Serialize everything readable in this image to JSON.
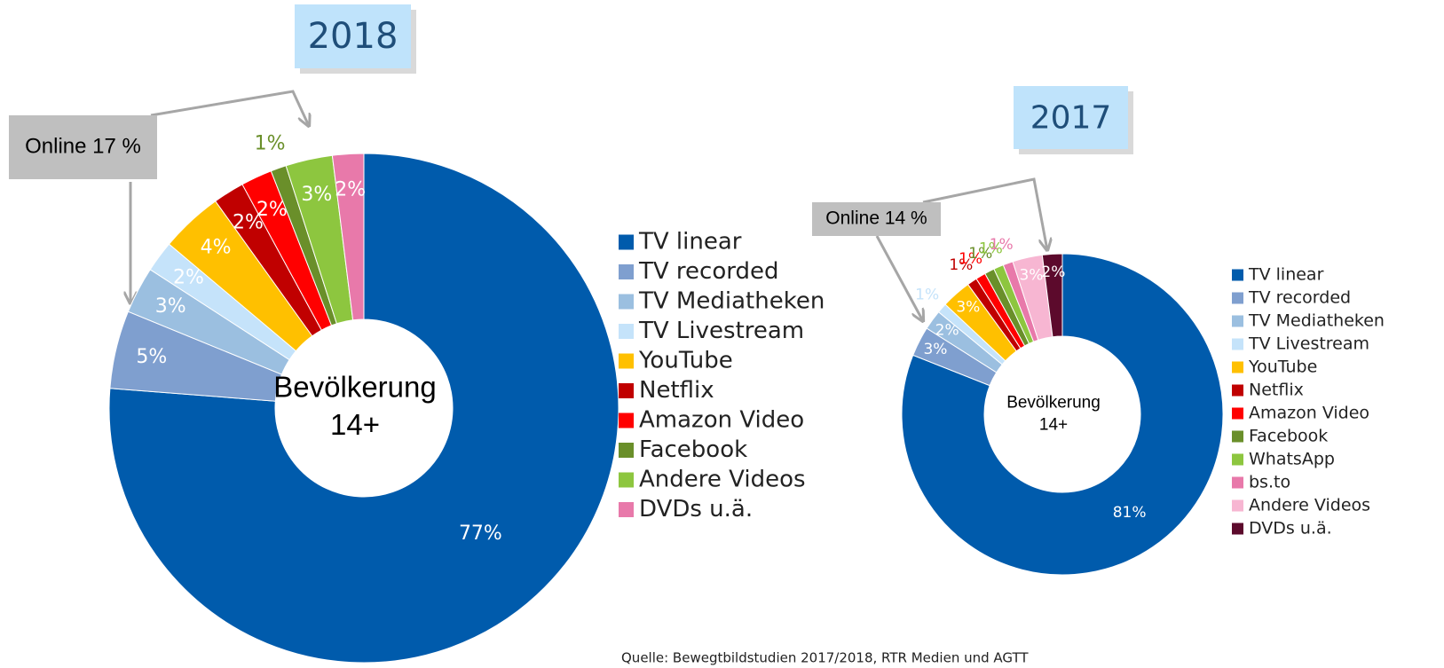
{
  "chart_data": [
    {
      "type": "donut",
      "title": "2018",
      "annotation": "Online 17 %",
      "center_label": [
        "Bevölkerung",
        "14+"
      ],
      "categories": [
        "TV linear",
        "TV recorded",
        "TV Mediatheken",
        "TV Livestream",
        "YouTube",
        "Netflix",
        "Amazon Video",
        "Facebook",
        "Andere Videos",
        "DVDs u.ä."
      ],
      "values": [
        77,
        5,
        3,
        2,
        4,
        2,
        2,
        1,
        3,
        2
      ],
      "value_labels": [
        "77%",
        "5%",
        "3%",
        "2%",
        "4%",
        "2%",
        "2%",
        "1%",
        "3%",
        "2%"
      ],
      "colors": [
        "#005bac",
        "#7f9fcf",
        "#9bbfe0",
        "#c5e3fa",
        "#ffc000",
        "#c00000",
        "#ff0000",
        "#6a8f2a",
        "#8dc63f",
        "#e879aa"
      ]
    },
    {
      "type": "donut",
      "title": "2017",
      "annotation": "Online 14 %",
      "center_label": [
        "Bevölkerung",
        "14+"
      ],
      "categories": [
        "TV linear",
        "TV recorded",
        "TV Mediatheken",
        "TV Livestream",
        "YouTube",
        "Netflix",
        "Amazon Video",
        "Facebook",
        "WhatsApp",
        "bs.to",
        "Andere Videos",
        "DVDs u.ä."
      ],
      "values": [
        81,
        3,
        2,
        1,
        3,
        1,
        1,
        1,
        1,
        1,
        3,
        2
      ],
      "value_labels": [
        "81%",
        "3%",
        "2%",
        "1%",
        "3%",
        "1%",
        "1%",
        "1%",
        "1%",
        "1%",
        "3%",
        "2%"
      ],
      "colors": [
        "#005bac",
        "#7f9fcf",
        "#9bbfe0",
        "#c5e3fa",
        "#ffc000",
        "#c00000",
        "#ff0000",
        "#6a8f2a",
        "#8dc63f",
        "#e879aa",
        "#f7b6d2",
        "#5c0a2c"
      ]
    }
  ],
  "source": "Quelle: Bewegtbildstudien 2017/2018, RTR Medien und AGTT"
}
